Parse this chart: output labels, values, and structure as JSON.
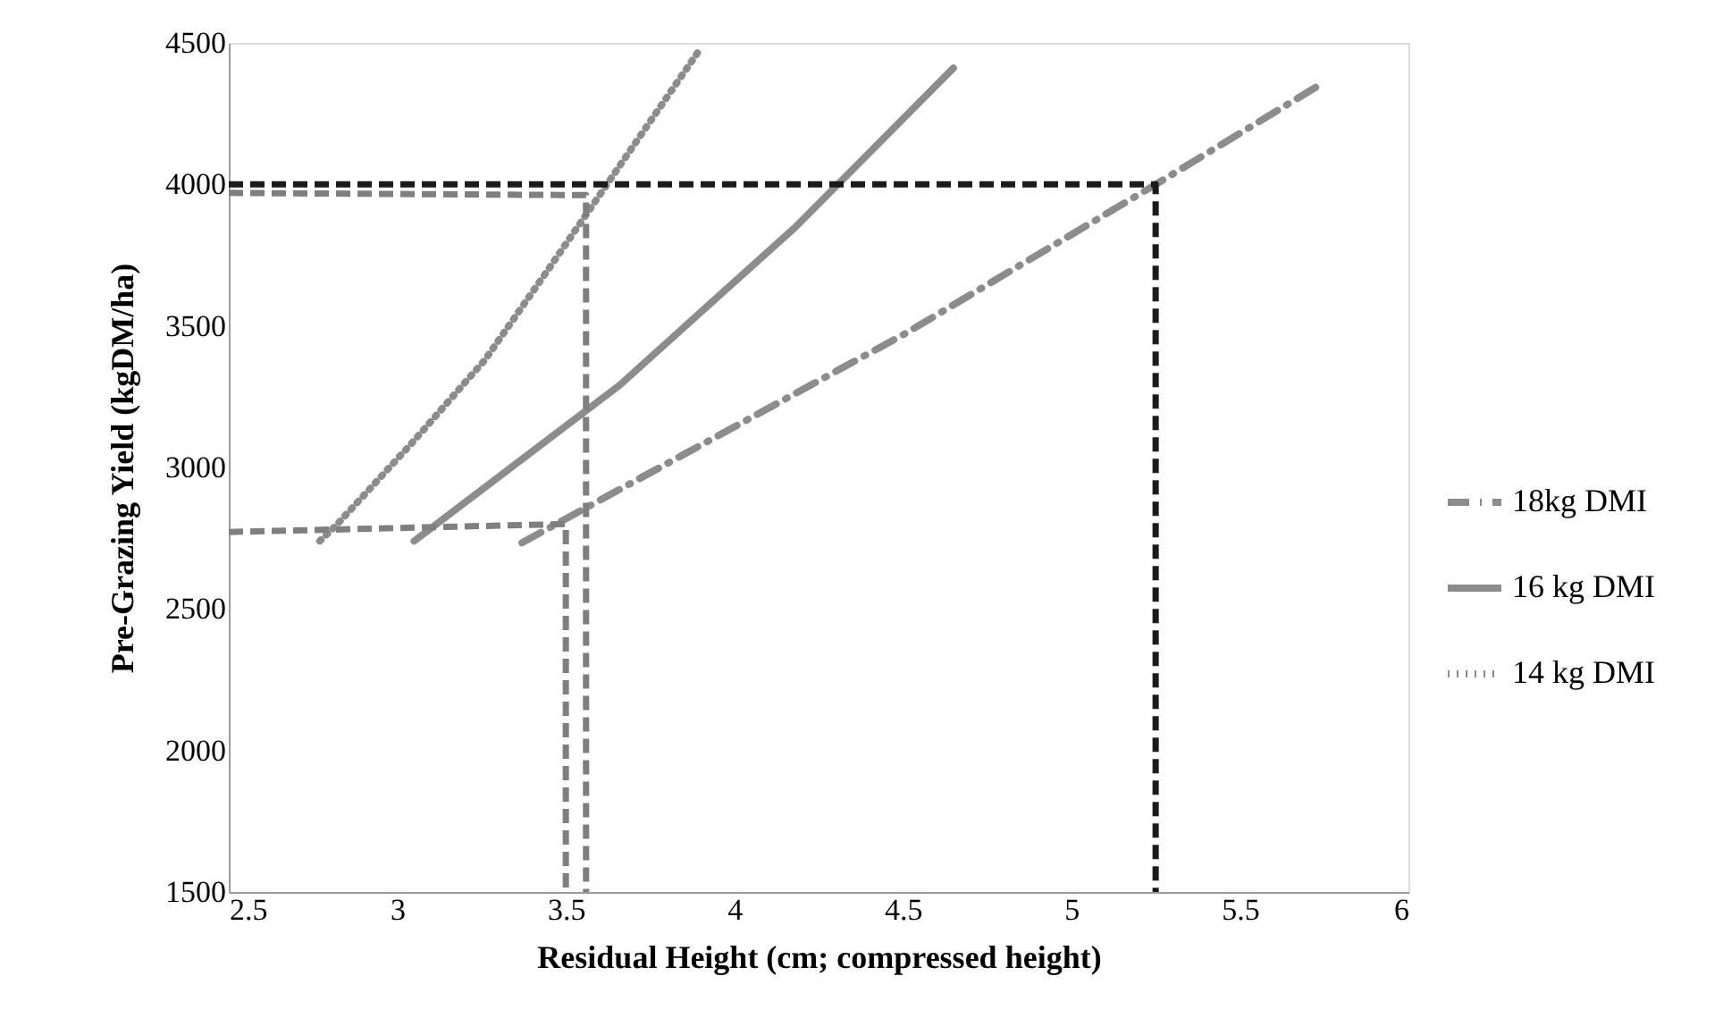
{
  "chart_data": {
    "type": "line",
    "xlabel": "Residual Height (cm; compressed height)",
    "ylabel": "Pre-Grazing Yield (kgDM/ha)",
    "xlim": [
      2.5,
      6
    ],
    "xticks": [
      2.5,
      3,
      3.5,
      4,
      4.5,
      5,
      5.5,
      6
    ],
    "ylim": [
      1500,
      4500
    ],
    "yticks": [
      1500,
      2000,
      2500,
      3000,
      3500,
      4000,
      4500
    ],
    "grid": false,
    "legend": "right",
    "marker": "none",
    "series": [
      {
        "name": "18kg DMI",
        "color": "#8c8c8c",
        "line_style": "dashdot",
        "x": [
          3.37,
          4.51,
          5.25,
          5.74
        ],
        "values": [
          2734,
          3475,
          4000,
          4354
        ]
      },
      {
        "name": "16 kg DMI",
        "color": "#8c8c8c",
        "line_style": "solid",
        "x": [
          3.05,
          3.66,
          4.18,
          4.65
        ],
        "values": [
          2740,
          3291,
          3848,
          4411
        ]
      },
      {
        "name": "14 kg DMI",
        "color": "#8c8c8c",
        "line_style": "dotted",
        "x": [
          2.77,
          2.82,
          3.04,
          3.26,
          3.45,
          3.6,
          3.75,
          3.9
        ],
        "values": [
          2740,
          2797,
          3082,
          3380,
          3703,
          3962,
          4222,
          4481
        ]
      },
      {
        "color": "#7f7f7f",
        "line_style": "dashed",
        "x": [
          2.5,
          3.56,
          3.56
        ],
        "values": [
          3970,
          3962,
          1500
        ]
      },
      {
        "color": "#7f7f7f",
        "line_style": "dashed",
        "x": [
          2.5,
          3.5,
          3.5
        ],
        "values": [
          2772,
          2800,
          1500
        ]
      },
      {
        "color": "#1a1a1a",
        "line_style": "dashed",
        "x": [
          2.5,
          5.25,
          5.25
        ],
        "values": [
          4000,
          4000,
          1500
        ]
      }
    ]
  }
}
